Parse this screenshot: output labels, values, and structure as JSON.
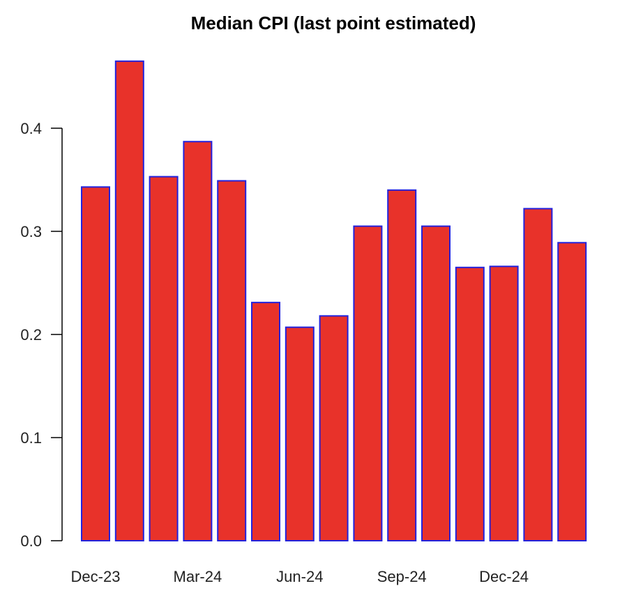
{
  "chart_data": {
    "type": "bar",
    "title": "Median CPI (last point estimated)",
    "xlabel": "",
    "ylabel": "",
    "ylim": [
      0,
      0.47
    ],
    "y_ticks": [
      "0.0",
      "0.1",
      "0.2",
      "0.3",
      "0.4"
    ],
    "y_tick_values": [
      0,
      0.1,
      0.2,
      0.3,
      0.4
    ],
    "categories": [
      "Dec-23",
      "Jan-24",
      "Feb-24",
      "Mar-24",
      "Apr-24",
      "May-24",
      "Jun-24",
      "Jul-24",
      "Aug-24",
      "Sep-24",
      "Oct-24",
      "Nov-24",
      "Dec-24",
      "Jan-25",
      "Feb-25"
    ],
    "x_tick_labels": [
      {
        "index": 0,
        "label": "Dec-23"
      },
      {
        "index": 3,
        "label": "Mar-24"
      },
      {
        "index": 6,
        "label": "Jun-24"
      },
      {
        "index": 9,
        "label": "Sep-24"
      },
      {
        "index": 12,
        "label": "Dec-24"
      }
    ],
    "values": [
      0.343,
      0.465,
      0.353,
      0.387,
      0.349,
      0.231,
      0.207,
      0.218,
      0.305,
      0.34,
      0.305,
      0.265,
      0.266,
      0.322,
      0.289
    ],
    "bar_fill": "#e8322a",
    "bar_border": "#2222dd",
    "grid": false,
    "legend": "none"
  }
}
